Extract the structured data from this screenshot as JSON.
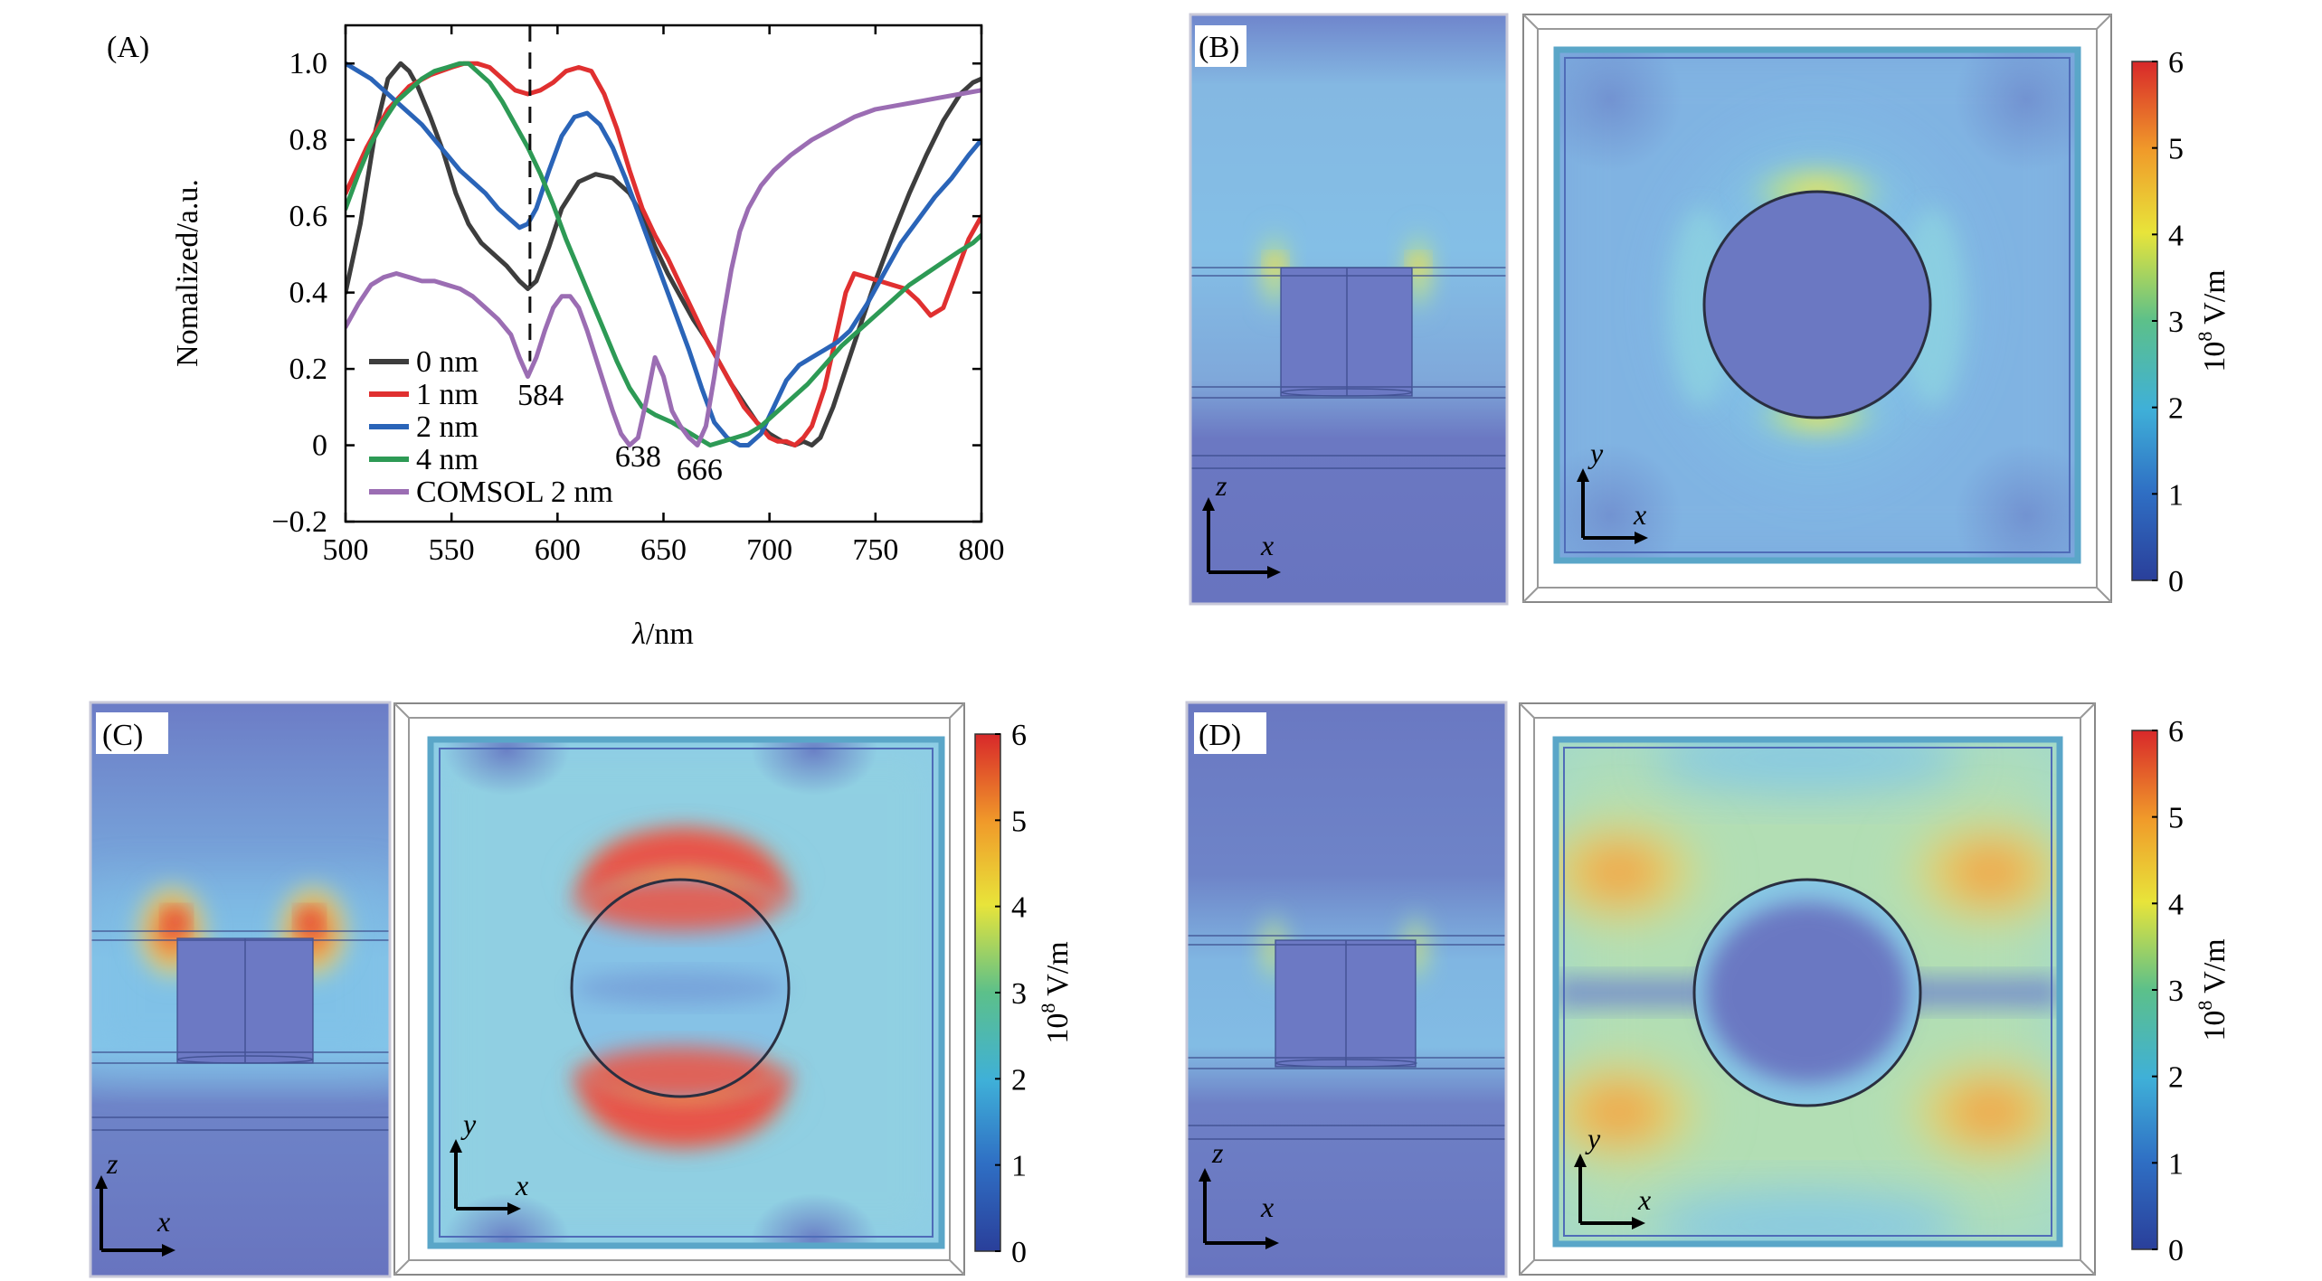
{
  "figure": {
    "panel_labels": [
      "(A)",
      "(B)",
      "(C)",
      "(D)"
    ]
  },
  "chart_data": [
    {
      "type": "line",
      "panel": "(A)",
      "xlabel": "λ/nm",
      "ylabel": "Nomalized/a.u.",
      "xlim": [
        500,
        800
      ],
      "ylim": [
        -0.2,
        1.1
      ],
      "xticks": [
        500,
        550,
        600,
        650,
        700,
        750,
        800
      ],
      "yticks": [
        -0.2,
        0,
        0.2,
        0.4,
        0.6,
        0.8,
        1.0
      ],
      "ytick_labels": [
        "−0.2",
        "0",
        "0.2",
        "0.4",
        "0.6",
        "0.8",
        "1.0"
      ],
      "legend_position": "bottom-left",
      "reference_line": {
        "x": 587,
        "style": "dashed"
      },
      "annotations": [
        {
          "text": "584",
          "x": 592,
          "y": 0.105
        },
        {
          "text": "638",
          "x": 638,
          "y": -0.055
        },
        {
          "text": "666",
          "x": 667,
          "y": -0.09
        }
      ],
      "series": [
        {
          "name": "0 nm",
          "color": "#3d3d3d",
          "x": [
            500,
            507,
            514,
            520,
            526,
            530,
            534,
            540,
            546,
            552,
            558,
            564,
            570,
            576,
            582,
            586,
            590,
            596,
            602,
            610,
            618,
            626,
            634,
            640,
            646,
            652,
            658,
            664,
            670,
            676,
            682,
            688,
            694,
            700,
            706,
            712,
            716,
            720,
            724,
            730,
            736,
            742,
            750,
            758,
            766,
            774,
            782,
            790,
            796,
            800
          ],
          "y": [
            0.4,
            0.58,
            0.82,
            0.96,
            1.0,
            0.98,
            0.94,
            0.86,
            0.77,
            0.66,
            0.58,
            0.53,
            0.5,
            0.47,
            0.43,
            0.41,
            0.43,
            0.52,
            0.62,
            0.69,
            0.71,
            0.7,
            0.66,
            0.6,
            0.52,
            0.45,
            0.39,
            0.33,
            0.28,
            0.22,
            0.16,
            0.11,
            0.06,
            0.03,
            0.01,
            0.0,
            0.01,
            0.0,
            0.02,
            0.1,
            0.2,
            0.3,
            0.43,
            0.55,
            0.66,
            0.76,
            0.85,
            0.92,
            0.95,
            0.96
          ]
        },
        {
          "name": "1 nm",
          "color": "#e03030",
          "x": [
            500,
            510,
            520,
            530,
            540,
            550,
            556,
            562,
            568,
            574,
            580,
            586,
            592,
            598,
            604,
            610,
            616,
            622,
            628,
            634,
            640,
            646,
            652,
            658,
            664,
            670,
            676,
            682,
            688,
            694,
            700,
            704,
            708,
            712,
            716,
            720,
            726,
            732,
            736,
            740,
            746,
            752,
            758,
            764,
            770,
            776,
            782,
            788,
            794,
            800
          ],
          "y": [
            0.66,
            0.78,
            0.88,
            0.94,
            0.97,
            0.99,
            1.0,
            1.0,
            0.99,
            0.96,
            0.93,
            0.92,
            0.93,
            0.95,
            0.98,
            0.99,
            0.98,
            0.92,
            0.83,
            0.72,
            0.62,
            0.55,
            0.49,
            0.42,
            0.35,
            0.28,
            0.22,
            0.16,
            0.1,
            0.06,
            0.02,
            0.01,
            0.01,
            0.0,
            0.02,
            0.05,
            0.15,
            0.3,
            0.4,
            0.45,
            0.44,
            0.43,
            0.42,
            0.41,
            0.38,
            0.34,
            0.36,
            0.45,
            0.54,
            0.6
          ]
        },
        {
          "name": "2 nm",
          "color": "#2a64b8",
          "x": [
            500,
            506,
            512,
            518,
            524,
            530,
            536,
            542,
            548,
            554,
            560,
            566,
            572,
            578,
            582,
            586,
            590,
            596,
            602,
            608,
            614,
            620,
            626,
            632,
            638,
            644,
            650,
            656,
            662,
            668,
            674,
            680,
            686,
            690,
            696,
            702,
            708,
            714,
            720,
            726,
            732,
            738,
            746,
            754,
            762,
            770,
            778,
            786,
            794,
            800
          ],
          "y": [
            1.0,
            0.98,
            0.96,
            0.93,
            0.9,
            0.87,
            0.84,
            0.8,
            0.76,
            0.72,
            0.69,
            0.66,
            0.62,
            0.59,
            0.57,
            0.58,
            0.62,
            0.72,
            0.81,
            0.86,
            0.87,
            0.84,
            0.78,
            0.7,
            0.61,
            0.52,
            0.43,
            0.34,
            0.25,
            0.15,
            0.06,
            0.02,
            0.0,
            0.0,
            0.03,
            0.1,
            0.17,
            0.21,
            0.23,
            0.25,
            0.27,
            0.3,
            0.37,
            0.45,
            0.53,
            0.59,
            0.65,
            0.7,
            0.76,
            0.8
          ]
        },
        {
          "name": "4 nm",
          "color": "#2d9a55",
          "x": [
            500,
            506,
            512,
            518,
            524,
            530,
            536,
            542,
            548,
            554,
            558,
            562,
            568,
            574,
            580,
            586,
            592,
            598,
            604,
            610,
            616,
            622,
            628,
            634,
            640,
            646,
            650,
            654,
            660,
            666,
            672,
            678,
            684,
            690,
            696,
            702,
            710,
            718,
            726,
            734,
            742,
            750,
            758,
            766,
            774,
            782,
            790,
            796,
            800
          ],
          "y": [
            0.62,
            0.71,
            0.79,
            0.85,
            0.9,
            0.93,
            0.96,
            0.98,
            0.99,
            1.0,
            1.0,
            0.98,
            0.95,
            0.9,
            0.84,
            0.78,
            0.71,
            0.63,
            0.54,
            0.46,
            0.38,
            0.3,
            0.22,
            0.15,
            0.1,
            0.08,
            0.07,
            0.06,
            0.04,
            0.02,
            0.0,
            0.01,
            0.02,
            0.03,
            0.05,
            0.08,
            0.12,
            0.16,
            0.21,
            0.26,
            0.3,
            0.34,
            0.38,
            0.42,
            0.45,
            0.48,
            0.51,
            0.53,
            0.55
          ]
        },
        {
          "name": "COMSOL 2 nm",
          "color": "#9b6db3",
          "x": [
            500,
            506,
            512,
            518,
            524,
            530,
            536,
            542,
            548,
            554,
            560,
            566,
            572,
            578,
            582,
            586,
            590,
            594,
            598,
            602,
            606,
            610,
            614,
            618,
            622,
            626,
            630,
            634,
            638,
            642,
            646,
            650,
            654,
            658,
            662,
            666,
            670,
            674,
            678,
            682,
            686,
            690,
            696,
            702,
            710,
            720,
            730,
            740,
            750,
            760,
            770,
            780,
            790,
            800
          ],
          "y": [
            0.31,
            0.37,
            0.42,
            0.44,
            0.45,
            0.44,
            0.43,
            0.43,
            0.42,
            0.41,
            0.39,
            0.36,
            0.33,
            0.29,
            0.23,
            0.18,
            0.23,
            0.3,
            0.36,
            0.39,
            0.39,
            0.36,
            0.3,
            0.23,
            0.16,
            0.09,
            0.03,
            0.0,
            0.02,
            0.12,
            0.23,
            0.18,
            0.09,
            0.05,
            0.02,
            0.0,
            0.05,
            0.18,
            0.33,
            0.46,
            0.56,
            0.62,
            0.68,
            0.72,
            0.76,
            0.8,
            0.83,
            0.86,
            0.88,
            0.89,
            0.9,
            0.91,
            0.92,
            0.93
          ]
        }
      ]
    },
    {
      "type": "heatmap",
      "panel": "(B)",
      "colorbar": {
        "ticks": [
          "0",
          "1",
          "2",
          "3",
          "4",
          "5",
          "6"
        ],
        "unit_base": "10",
        "unit_exp": "8",
        "unit_rest": " V/m",
        "range": [
          0,
          6
        ]
      },
      "side_view_axes": [
        "z",
        "x"
      ],
      "top_view_axes": [
        "y",
        "x"
      ]
    },
    {
      "type": "heatmap",
      "panel": "(C)",
      "colorbar": {
        "ticks": [
          "0",
          "1",
          "2",
          "3",
          "4",
          "5",
          "6"
        ],
        "unit_base": "10",
        "unit_exp": "8",
        "unit_rest": " V/m",
        "range": [
          0,
          6
        ]
      },
      "side_view_axes": [
        "z",
        "x"
      ],
      "top_view_axes": [
        "y",
        "x"
      ]
    },
    {
      "type": "heatmap",
      "panel": "(D)",
      "colorbar": {
        "ticks": [
          "0",
          "1",
          "2",
          "3",
          "4",
          "5",
          "6"
        ],
        "unit_base": "10",
        "unit_exp": "8",
        "unit_rest": " V/m",
        "range": [
          0,
          6
        ]
      },
      "side_view_axes": [
        "z",
        "x"
      ],
      "top_view_axes": [
        "y",
        "x"
      ]
    }
  ]
}
